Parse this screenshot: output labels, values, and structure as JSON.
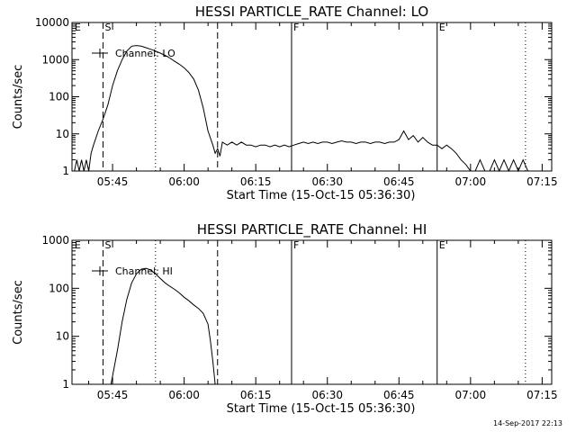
{
  "footer": {
    "timestamp": "14-Sep-2017 22:13"
  },
  "chart_data": [
    {
      "type": "line",
      "title": "HESSI PARTICLE_RATE Channel: LO",
      "xlabel": "Start Time (15-Oct-15 05:36:30)",
      "ylabel": "Counts/sec",
      "yscale": "log",
      "ylim": [
        1,
        10000
      ],
      "xlim": [
        "05:36:30",
        "07:17:00"
      ],
      "xticks": [
        "05:45",
        "06:00",
        "06:15",
        "06:30",
        "06:45",
        "07:00",
        "07:15"
      ],
      "yticks": [
        "1",
        "10",
        "100",
        "1000",
        "10000"
      ],
      "legend": {
        "label": "Channel: LO",
        "position": "top-left"
      },
      "markers": [
        {
          "time": "05:36:40",
          "label": "E",
          "style": "none"
        },
        {
          "time": "05:43:00",
          "label": "S",
          "style": "dashed"
        },
        {
          "time": "05:54:00",
          "label": "",
          "style": "dotted"
        },
        {
          "time": "06:07:00",
          "label": "",
          "style": "dashed"
        },
        {
          "time": "06:22:30",
          "label": "F",
          "style": "solid"
        },
        {
          "time": "06:53:00",
          "label": "E",
          "style": "solid"
        },
        {
          "time": "07:11:30",
          "label": "",
          "style": "dotted"
        }
      ],
      "series": [
        {
          "name": "Channel: LO",
          "x": [
            "05:37:00",
            "05:37:30",
            "05:38:00",
            "05:38:30",
            "05:39:00",
            "05:39:30",
            "05:40:00",
            "05:40:30",
            "05:41:00",
            "05:42:00",
            "05:43:00",
            "05:44:00",
            "05:45:00",
            "05:46:00",
            "05:47:00",
            "05:48:00",
            "05:49:00",
            "05:50:00",
            "05:51:00",
            "05:52:00",
            "05:53:00",
            "05:54:00",
            "05:55:00",
            "05:56:00",
            "05:57:00",
            "05:58:00",
            "05:59:00",
            "06:00:00",
            "06:01:00",
            "06:02:00",
            "06:03:00",
            "06:04:00",
            "06:05:00",
            "06:06:00",
            "06:06:30",
            "06:07:00",
            "06:07:30",
            "06:08:00",
            "06:09:00",
            "06:10:00",
            "06:11:00",
            "06:12:00",
            "06:13:00",
            "06:14:00",
            "06:15:00",
            "06:16:00",
            "06:17:00",
            "06:18:00",
            "06:19:00",
            "06:20:00",
            "06:21:00",
            "06:22:00",
            "06:23:00",
            "06:24:00",
            "06:25:00",
            "06:26:00",
            "06:27:00",
            "06:28:00",
            "06:29:00",
            "06:30:00",
            "06:31:00",
            "06:32:00",
            "06:33:00",
            "06:34:00",
            "06:35:00",
            "06:36:00",
            "06:37:00",
            "06:38:00",
            "06:39:00",
            "06:40:00",
            "06:41:00",
            "06:42:00",
            "06:43:00",
            "06:44:00",
            "06:45:00",
            "06:46:00",
            "06:47:00",
            "06:48:00",
            "06:49:00",
            "06:50:00",
            "06:51:00",
            "06:52:00",
            "06:53:00",
            "06:54:00",
            "06:55:00",
            "06:56:00",
            "06:57:00",
            "06:58:00",
            "06:59:00",
            "07:00:00",
            "07:01:00",
            "07:02:00",
            "07:03:00",
            "07:04:00",
            "07:05:00",
            "07:06:00",
            "07:07:00",
            "07:08:00",
            "07:09:00",
            "07:10:00",
            "07:11:00",
            "07:12:00"
          ],
          "values": [
            1,
            2,
            1,
            2,
            1,
            2,
            1,
            3,
            5,
            12,
            25,
            60,
            200,
            500,
            1000,
            1700,
            2300,
            2400,
            2300,
            2100,
            1900,
            1700,
            1500,
            1300,
            1100,
            900,
            750,
            600,
            450,
            300,
            150,
            50,
            12,
            5,
            3,
            4,
            2.5,
            6,
            5,
            6,
            5,
            6,
            5,
            5,
            4.5,
            5,
            5,
            4.5,
            5,
            4.5,
            5,
            4.5,
            5,
            5.5,
            6,
            5.5,
            6,
            5.5,
            6,
            6,
            5.5,
            6,
            6.5,
            6,
            6,
            5.5,
            6,
            6,
            5.5,
            6,
            6,
            5.5,
            6,
            6,
            7,
            12,
            7,
            9,
            6,
            8,
            6,
            5,
            5,
            4,
            5,
            4,
            3,
            2,
            1.5,
            1,
            1,
            2,
            1,
            1,
            2,
            1,
            2,
            1,
            2,
            1,
            2,
            1
          ]
        }
      ]
    },
    {
      "type": "line",
      "title": "HESSI PARTICLE_RATE Channel: HI",
      "xlabel": "Start Time (15-Oct-15 05:36:30)",
      "ylabel": "Counts/sec",
      "yscale": "log",
      "ylim": [
        1,
        1000
      ],
      "xlim": [
        "05:36:30",
        "07:17:00"
      ],
      "xticks": [
        "05:45",
        "06:00",
        "06:15",
        "06:30",
        "06:45",
        "07:00",
        "07:15"
      ],
      "yticks": [
        "1",
        "10",
        "100",
        "1000"
      ],
      "legend": {
        "label": "Channel: HI",
        "position": "top-left"
      },
      "markers": [
        {
          "time": "05:36:40",
          "label": "E",
          "style": "none"
        },
        {
          "time": "05:43:00",
          "label": "S",
          "style": "dashed"
        },
        {
          "time": "05:54:00",
          "label": "",
          "style": "dotted"
        },
        {
          "time": "06:07:00",
          "label": "",
          "style": "dashed"
        },
        {
          "time": "06:22:30",
          "label": "F",
          "style": "solid"
        },
        {
          "time": "06:53:00",
          "label": "E",
          "style": "solid"
        },
        {
          "time": "07:11:30",
          "label": "",
          "style": "dotted"
        }
      ],
      "series": [
        {
          "name": "Channel: HI",
          "x": [
            "05:44:40",
            "05:45:00",
            "05:46:00",
            "05:47:00",
            "05:48:00",
            "05:49:00",
            "05:50:00",
            "05:51:00",
            "05:52:00",
            "05:53:00",
            "05:54:00",
            "05:55:00",
            "05:56:00",
            "05:57:00",
            "05:58:00",
            "05:59:00",
            "06:00:00",
            "06:01:00",
            "06:02:00",
            "06:03:00",
            "06:04:00",
            "06:05:00",
            "06:05:30",
            "06:06:00",
            "06:06:30"
          ],
          "values": [
            1,
            1.5,
            5,
            20,
            60,
            130,
            200,
            250,
            260,
            240,
            200,
            160,
            130,
            110,
            95,
            80,
            65,
            55,
            45,
            38,
            30,
            18,
            8,
            3,
            1
          ]
        }
      ]
    }
  ]
}
